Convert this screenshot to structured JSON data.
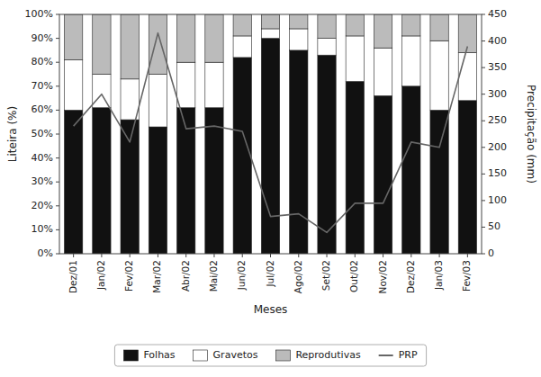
{
  "chart_data": {
    "type": "bar",
    "stacked": true,
    "categories": [
      "Dez/01",
      "Jan/02",
      "Fev/02",
      "Mar/02",
      "Abr/02",
      "Mai/02",
      "Jun/02",
      "Jul/02",
      "Ago/02",
      "Set/02",
      "Out/02",
      "Nov/02",
      "Dez/02",
      "Jan/03",
      "Fev/03"
    ],
    "series": [
      {
        "name": "Folhas",
        "type": "bar",
        "color": "#111111",
        "values": [
          60,
          61,
          56,
          53,
          61,
          61,
          82,
          90,
          85,
          83,
          72,
          66,
          70,
          60,
          64
        ]
      },
      {
        "name": "Gravetos",
        "type": "bar",
        "color": "#ffffff",
        "values": [
          21,
          14,
          17,
          22,
          19,
          19,
          9,
          4,
          9,
          7,
          19,
          20,
          21,
          29,
          20
        ]
      },
      {
        "name": "Reprodutivas",
        "type": "bar",
        "color": "#bbbbbb",
        "values": [
          19,
          25,
          27,
          25,
          20,
          20,
          9,
          6,
          6,
          10,
          9,
          14,
          9,
          11,
          16
        ]
      },
      {
        "name": "PRP",
        "type": "line",
        "axis": "y2",
        "color": "#666666",
        "values": [
          240,
          300,
          210,
          415,
          235,
          240,
          230,
          70,
          75,
          40,
          95,
          95,
          210,
          200,
          390
        ]
      }
    ],
    "ylim": [
      0,
      100
    ],
    "yticks": [
      {
        "value": 0,
        "label": "0%"
      },
      {
        "value": 10,
        "label": "10%"
      },
      {
        "value": 20,
        "label": "20%"
      },
      {
        "value": 30,
        "label": "30%"
      },
      {
        "value": 40,
        "label": "40%"
      },
      {
        "value": 50,
        "label": "50%"
      },
      {
        "value": 60,
        "label": "60%"
      },
      {
        "value": 70,
        "label": "70%"
      },
      {
        "value": 80,
        "label": "80%"
      },
      {
        "value": 90,
        "label": "90%"
      },
      {
        "value": 100,
        "label": "100%"
      }
    ],
    "y2lim": [
      0,
      450
    ],
    "y2ticks": [
      0,
      50,
      100,
      150,
      200,
      250,
      300,
      350,
      400,
      450
    ],
    "x_label": "Meses",
    "y_label": "Liteira (%)",
    "y2_label": "Precipitação (mm)",
    "legend": "bottom",
    "grid": false
  }
}
